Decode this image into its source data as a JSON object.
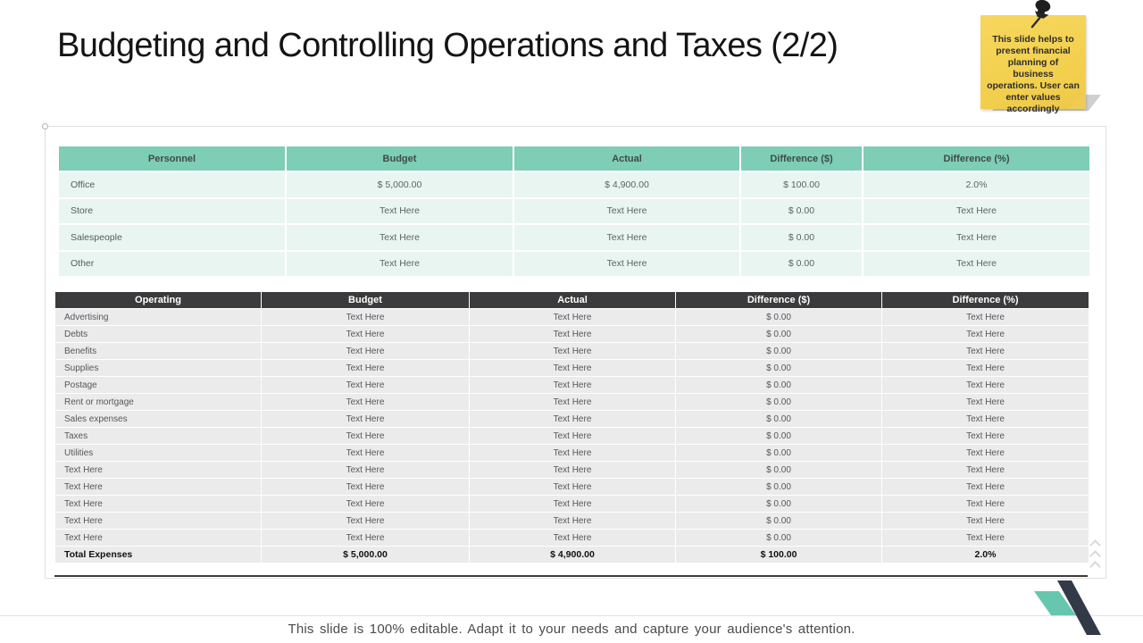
{
  "slide": {
    "title": "Budgeting and Controlling Operations and Taxes (2/2)",
    "footer": "This slide is 100% editable. Adapt it to your needs and capture your audience's attention."
  },
  "sticky_note": {
    "text": "This slide helps to present financial planning of business operations. User can enter values accordingly"
  },
  "personnel_table": {
    "headers": [
      "Personnel",
      "Budget",
      "Actual",
      "Difference ($)",
      "Difference (%)"
    ],
    "rows": [
      [
        "Office",
        "$ 5,000.00",
        "$ 4,900.00",
        "$ 100.00",
        "2.0%"
      ],
      [
        "Store",
        "Text Here",
        "Text Here",
        "$ 0.00",
        "Text Here"
      ],
      [
        "Salespeople",
        "Text Here",
        "Text Here",
        "$ 0.00",
        "Text Here"
      ],
      [
        "Other",
        "Text Here",
        "Text Here",
        "$ 0.00",
        "Text Here"
      ]
    ]
  },
  "operating_table": {
    "headers": [
      "Operating",
      "Budget",
      "Actual",
      "Difference ($)",
      "Difference (%)"
    ],
    "rows": [
      [
        "Advertising",
        "Text Here",
        "Text Here",
        "$ 0.00",
        "Text Here"
      ],
      [
        "Debts",
        "Text Here",
        "Text Here",
        "$ 0.00",
        "Text Here"
      ],
      [
        "Benefits",
        "Text Here",
        "Text Here",
        "$ 0.00",
        "Text Here"
      ],
      [
        "Supplies",
        "Text Here",
        "Text Here",
        "$ 0.00",
        "Text Here"
      ],
      [
        "Postage",
        "Text Here",
        "Text Here",
        "$ 0.00",
        "Text Here"
      ],
      [
        "Rent or mortgage",
        "Text Here",
        "Text Here",
        "$ 0.00",
        "Text Here"
      ],
      [
        "Sales expenses",
        "Text Here",
        "Text Here",
        "$ 0.00",
        "Text Here"
      ],
      [
        "Taxes",
        "Text Here",
        "Text Here",
        "$ 0.00",
        "Text Here"
      ],
      [
        "Utilities",
        "Text Here",
        "Text Here",
        "$ 0.00",
        "Text Here"
      ],
      [
        "Text Here",
        "Text Here",
        "Text Here",
        "$ 0.00",
        "Text Here"
      ],
      [
        "Text Here",
        "Text Here",
        "Text Here",
        "$ 0.00",
        "Text Here"
      ],
      [
        "Text Here",
        "Text Here",
        "Text Here",
        "$ 0.00",
        "Text Here"
      ],
      [
        "Text Here",
        "Text Here",
        "Text Here",
        "$ 0.00",
        "Text Here"
      ],
      [
        "Text Here",
        "Text Here",
        "Text Here",
        "$ 0.00",
        "Text Here"
      ]
    ],
    "total_row": [
      "Total Expenses",
      "$ 5,000.00",
      "$ 4,900.00",
      "$ 100.00",
      "2.0%"
    ]
  },
  "colors": {
    "table1_header_bg": "#7ECDB5",
    "table1_row_bg": "#E9F5F1",
    "table2_header_bg": "#3B3B3D",
    "table2_row_bg": "#EBEBEC",
    "note_bg": "#F6D75E",
    "accent_teal": "#66C7AE",
    "accent_dark": "#333A47"
  }
}
